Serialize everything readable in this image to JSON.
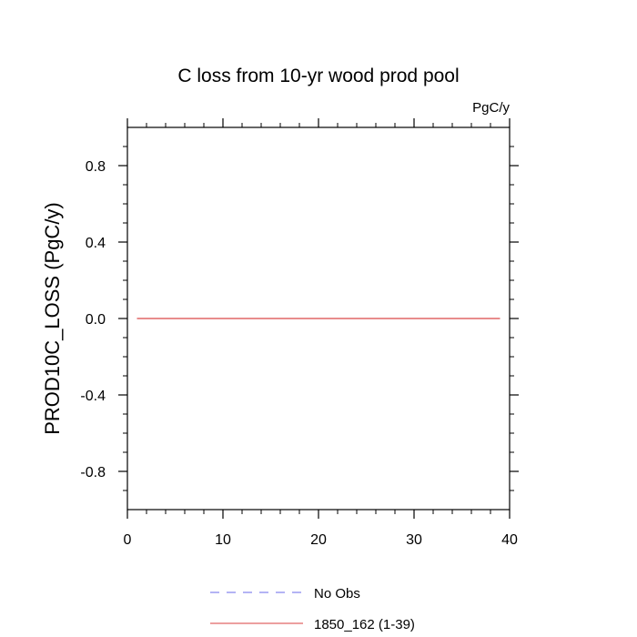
{
  "chart_data": {
    "type": "line",
    "title": "C loss from 10-yr wood prod pool",
    "units_label": "PgC/y",
    "xlabel": "",
    "ylabel": "PROD10C_LOSS  (PgC/y)",
    "xlim": [
      0,
      40
    ],
    "ylim": [
      -1.0,
      1.0
    ],
    "x_ticks": [
      0,
      10,
      20,
      30,
      40
    ],
    "y_ticks": [
      -0.8,
      -0.4,
      0.0,
      0.4,
      0.8
    ],
    "x_tick_labels": [
      "0",
      "10",
      "20",
      "30",
      "40"
    ],
    "y_tick_labels": [
      "-0.8",
      "-0.4",
      "0.0",
      "0.4",
      "0.8"
    ],
    "grid": false,
    "legend_position": "bottom",
    "series": [
      {
        "name": "1850_162 (1-39)",
        "color": "#e06666",
        "style": "solid",
        "x": [
          1,
          39
        ],
        "y": [
          0.0,
          0.0
        ]
      }
    ],
    "legend": [
      {
        "label": "No Obs",
        "color": "#8888ee",
        "style": "dashed"
      },
      {
        "label": "1850_162 (1-39)",
        "color": "#e06666",
        "style": "solid"
      }
    ]
  }
}
